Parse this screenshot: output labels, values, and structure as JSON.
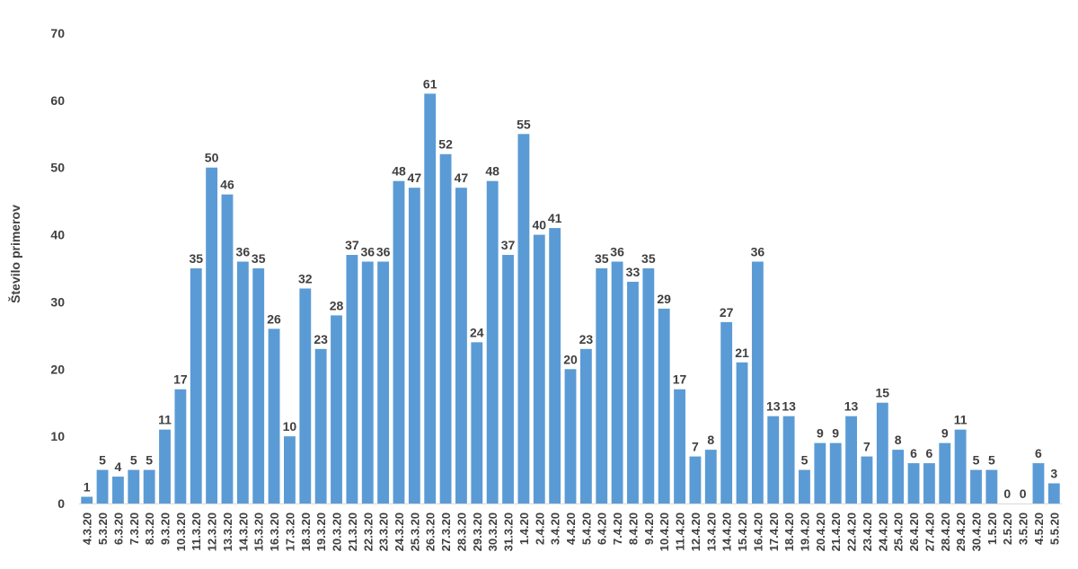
{
  "chart_data": {
    "type": "bar",
    "title": "",
    "xlabel": "",
    "ylabel": "Število primerov",
    "ylim": [
      0,
      70
    ],
    "yticks": [
      "0",
      "10",
      "20",
      "30",
      "40",
      "50",
      "60",
      "70"
    ],
    "grid": false,
    "legend": "none",
    "bar_color": "#5b9bd5",
    "categories": [
      "4.3.20",
      "5.3.20",
      "6.3.20",
      "7.3.20",
      "8.3.20",
      "9.3.20",
      "10.3.20",
      "11.3.20",
      "12.3.20",
      "13.3.20",
      "14.3.20",
      "15.3.20",
      "16.3.20",
      "17.3.20",
      "18.3.20",
      "19.3.20",
      "20.3.20",
      "21.3.20",
      "22.3.20",
      "23.3.20",
      "24.3.20",
      "25.3.20",
      "26.3.20",
      "27.3.20",
      "28.3.20",
      "29.3.20",
      "30.3.20",
      "31.3.20",
      "1.4.20",
      "2.4.20",
      "3.4.20",
      "4.4.20",
      "5.4.20",
      "6.4.20",
      "7.4.20",
      "8.4.20",
      "9.4.20",
      "10.4.20",
      "11.4.20",
      "12.4.20",
      "13.4.20",
      "14.4.20",
      "15.4.20",
      "16.4.20",
      "17.4.20",
      "18.4.20",
      "19.4.20",
      "20.4.20",
      "21.4.20",
      "22.4.20",
      "23.4.20",
      "24.4.20",
      "25.4.20",
      "26.4.20",
      "27.4.20",
      "28.4.20",
      "29.4.20",
      "30.4.20",
      "1.5.20",
      "2.5.20",
      "3.5.20",
      "4.5.20",
      "5.5.20"
    ],
    "values": [
      1,
      5,
      4,
      5,
      5,
      11,
      17,
      35,
      50,
      46,
      36,
      35,
      26,
      10,
      32,
      23,
      28,
      37,
      36,
      36,
      48,
      47,
      61,
      52,
      47,
      24,
      48,
      37,
      55,
      40,
      41,
      20,
      23,
      35,
      36,
      33,
      35,
      29,
      17,
      7,
      8,
      27,
      21,
      36,
      13,
      13,
      5,
      9,
      9,
      13,
      7,
      15,
      8,
      6,
      6,
      9,
      11,
      5,
      5,
      0,
      0,
      6,
      3
    ]
  }
}
